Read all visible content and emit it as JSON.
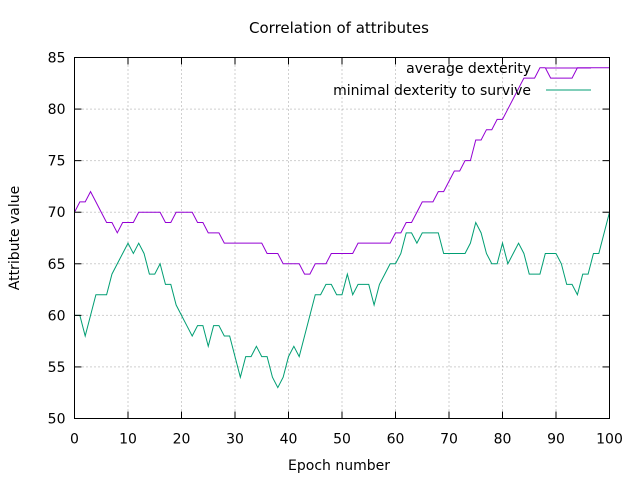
{
  "chart_data": {
    "type": "line",
    "title": "Correlation of attributes",
    "xlabel": "Epoch number",
    "ylabel": "Attribute value",
    "xlim": [
      0,
      100
    ],
    "ylim": [
      50,
      85
    ],
    "xticks": [
      0,
      10,
      20,
      30,
      40,
      50,
      60,
      70,
      80,
      90,
      100
    ],
    "yticks": [
      50,
      55,
      60,
      65,
      70,
      75,
      80,
      85
    ],
    "grid": true,
    "legend_position": "top-right",
    "x": [
      0,
      1,
      2,
      3,
      4,
      5,
      6,
      7,
      8,
      9,
      10,
      11,
      12,
      13,
      14,
      15,
      16,
      17,
      18,
      19,
      20,
      21,
      22,
      23,
      24,
      25,
      26,
      27,
      28,
      29,
      30,
      31,
      32,
      33,
      34,
      35,
      36,
      37,
      38,
      39,
      40,
      41,
      42,
      43,
      44,
      45,
      46,
      47,
      48,
      49,
      50,
      51,
      52,
      53,
      54,
      55,
      56,
      57,
      58,
      59,
      60,
      61,
      62,
      63,
      64,
      65,
      66,
      67,
      68,
      69,
      70,
      71,
      72,
      73,
      74,
      75,
      76,
      77,
      78,
      79,
      80,
      81,
      82,
      83,
      84,
      85,
      86,
      87,
      88,
      89,
      90,
      91,
      92,
      93,
      94,
      95,
      96,
      97,
      98,
      99,
      100
    ],
    "series": [
      {
        "name": "average dexterity",
        "color": "#9400d3",
        "values": [
          70,
          71,
          71,
          72,
          71,
          70,
          69,
          69,
          68,
          69,
          69,
          69,
          70,
          70,
          70,
          70,
          70,
          69,
          69,
          70,
          70,
          70,
          70,
          69,
          69,
          68,
          68,
          68,
          67,
          67,
          67,
          67,
          67,
          67,
          67,
          67,
          66,
          66,
          66,
          65,
          65,
          65,
          65,
          64,
          64,
          65,
          65,
          65,
          66,
          66,
          66,
          66,
          66,
          67,
          67,
          67,
          67,
          67,
          67,
          67,
          68,
          68,
          69,
          69,
          70,
          71,
          71,
          71,
          72,
          72,
          73,
          74,
          74,
          75,
          75,
          77,
          77,
          78,
          78,
          79,
          79,
          80,
          81,
          82,
          83,
          83,
          83,
          84,
          84,
          83,
          83,
          83,
          83,
          83,
          84,
          84,
          84,
          84,
          84,
          84,
          84
        ]
      },
      {
        "name": "minimal dexterity to survive",
        "color": "#009e73",
        "values": [
          60,
          60,
          58,
          60,
          62,
          62,
          62,
          64,
          65,
          66,
          67,
          66,
          67,
          66,
          64,
          64,
          65,
          63,
          63,
          61,
          60,
          59,
          58,
          59,
          59,
          57,
          59,
          59,
          58,
          58,
          56,
          54,
          56,
          56,
          57,
          56,
          56,
          54,
          53,
          54,
          56,
          57,
          56,
          58,
          60,
          62,
          62,
          63,
          63,
          62,
          62,
          64,
          62,
          63,
          63,
          63,
          61,
          63,
          64,
          65,
          65,
          66,
          68,
          68,
          67,
          68,
          68,
          68,
          68,
          66,
          66,
          66,
          66,
          66,
          67,
          69,
          68,
          66,
          65,
          65,
          67,
          65,
          66,
          67,
          66,
          64,
          64,
          64,
          66,
          66,
          66,
          65,
          63,
          63,
          62,
          64,
          64,
          66,
          66,
          68,
          70
        ]
      }
    ]
  }
}
